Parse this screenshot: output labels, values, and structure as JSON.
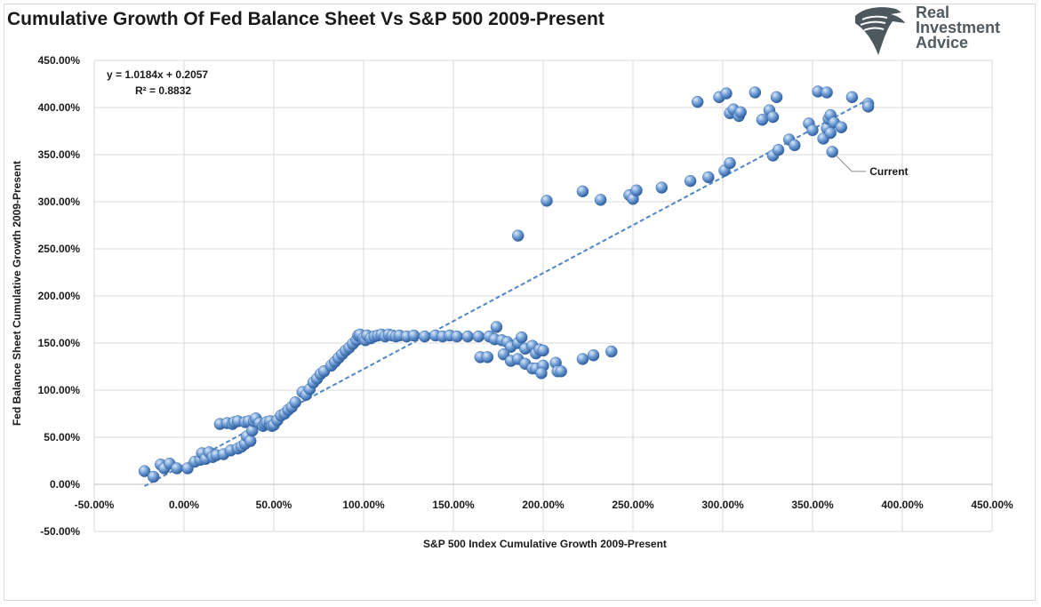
{
  "title": "Cumulative Growth Of Fed Balance Sheet Vs S&P 500 2009-Present",
  "logo": {
    "line1": "Real",
    "line2": "Investment",
    "line3": "Advice"
  },
  "chart_data": {
    "type": "scatter",
    "xlabel": "S&P 500 Index Cumulative Growth 2009-Present",
    "ylabel": "Fed Balance Sheet Cumulative Growth 2009-Present",
    "xlim": [
      -50,
      450
    ],
    "ylim": [
      -50,
      450
    ],
    "x_ticks": [
      "-50.00%",
      "0.00%",
      "50.00%",
      "100.00%",
      "150.00%",
      "200.00%",
      "250.00%",
      "300.00%",
      "350.00%",
      "400.00%",
      "450.00%"
    ],
    "y_ticks": [
      "-50.00%",
      "0.00%",
      "50.00%",
      "100.00%",
      "150.00%",
      "200.00%",
      "250.00%",
      "300.00%",
      "350.00%",
      "400.00%",
      "450.00%"
    ],
    "grid": true,
    "trendline": {
      "equation": "y = 1.0184x + 0.2057",
      "r2": "R² = 0.8832",
      "x_range": [
        -22,
        380
      ]
    },
    "annotation": {
      "text": "Current",
      "x": 361,
      "y": 353
    },
    "colors": {
      "point": "#5b8fcf",
      "trend": "#4f86c6",
      "grid": "#d9d9d9"
    },
    "points": [
      [
        -22,
        14
      ],
      [
        -17,
        8
      ],
      [
        -13,
        21
      ],
      [
        -11,
        17
      ],
      [
        -8,
        22
      ],
      [
        -4,
        17
      ],
      [
        2,
        17
      ],
      [
        6,
        24
      ],
      [
        9,
        26
      ],
      [
        10,
        33
      ],
      [
        12,
        27
      ],
      [
        14,
        34
      ],
      [
        16,
        29
      ],
      [
        18,
        31
      ],
      [
        20,
        64
      ],
      [
        22,
        32
      ],
      [
        24,
        65
      ],
      [
        26,
        36
      ],
      [
        27,
        64
      ],
      [
        28,
        66
      ],
      [
        30,
        38
      ],
      [
        30,
        67
      ],
      [
        32,
        40
      ],
      [
        34,
        66
      ],
      [
        34,
        43
      ],
      [
        35,
        51
      ],
      [
        36,
        67
      ],
      [
        37,
        46
      ],
      [
        38,
        57
      ],
      [
        39,
        67
      ],
      [
        40,
        70
      ],
      [
        42,
        65
      ],
      [
        44,
        62
      ],
      [
        45,
        64
      ],
      [
        46,
        66
      ],
      [
        48,
        64
      ],
      [
        48,
        67
      ],
      [
        49,
        62
      ],
      [
        50,
        63
      ],
      [
        52,
        68
      ],
      [
        54,
        73
      ],
      [
        56,
        75
      ],
      [
        58,
        79
      ],
      [
        60,
        82
      ],
      [
        62,
        87
      ],
      [
        66,
        98
      ],
      [
        68,
        95
      ],
      [
        70,
        101
      ],
      [
        72,
        108
      ],
      [
        74,
        112
      ],
      [
        76,
        117
      ],
      [
        78,
        120
      ],
      [
        82,
        126
      ],
      [
        84,
        130
      ],
      [
        86,
        134
      ],
      [
        88,
        138
      ],
      [
        90,
        142
      ],
      [
        92,
        145
      ],
      [
        94,
        149
      ],
      [
        96,
        153
      ],
      [
        97,
        158
      ],
      [
        98,
        159
      ],
      [
        100,
        155
      ],
      [
        101,
        153
      ],
      [
        102,
        158
      ],
      [
        104,
        155
      ],
      [
        106,
        157
      ],
      [
        108,
        158
      ],
      [
        110,
        159
      ],
      [
        112,
        157
      ],
      [
        114,
        159
      ],
      [
        116,
        158
      ],
      [
        118,
        157
      ],
      [
        120,
        158
      ],
      [
        124,
        157
      ],
      [
        128,
        158
      ],
      [
        134,
        157
      ],
      [
        140,
        158
      ],
      [
        144,
        157
      ],
      [
        148,
        158
      ],
      [
        152,
        157
      ],
      [
        158,
        157
      ],
      [
        164,
        157
      ],
      [
        170,
        157
      ],
      [
        174,
        167
      ],
      [
        173,
        154
      ],
      [
        177,
        153
      ],
      [
        180,
        151
      ],
      [
        182,
        146
      ],
      [
        186,
        150
      ],
      [
        188,
        156
      ],
      [
        190,
        144
      ],
      [
        194,
        147
      ],
      [
        196,
        139
      ],
      [
        198,
        143
      ],
      [
        200,
        142
      ],
      [
        165,
        135
      ],
      [
        169,
        135
      ],
      [
        178,
        138
      ],
      [
        182,
        131
      ],
      [
        186,
        133
      ],
      [
        190,
        128
      ],
      [
        194,
        123
      ],
      [
        196,
        123
      ],
      [
        200,
        126
      ],
      [
        199,
        118
      ],
      [
        207,
        129
      ],
      [
        208,
        120
      ],
      [
        210,
        120
      ],
      [
        222,
        133
      ],
      [
        228,
        137
      ],
      [
        238,
        141
      ],
      [
        186,
        264
      ],
      [
        202,
        301
      ],
      [
        222,
        311
      ],
      [
        232,
        302
      ],
      [
        248,
        307
      ],
      [
        250,
        303
      ],
      [
        252,
        312
      ],
      [
        266,
        315
      ],
      [
        282,
        322
      ],
      [
        292,
        326
      ],
      [
        301,
        333
      ],
      [
        304,
        341
      ],
      [
        286,
        406
      ],
      [
        298,
        411
      ],
      [
        302,
        415
      ],
      [
        304,
        394
      ],
      [
        306,
        398
      ],
      [
        309,
        391
      ],
      [
        310,
        395
      ],
      [
        318,
        416
      ],
      [
        322,
        387
      ],
      [
        326,
        397
      ],
      [
        328,
        390
      ],
      [
        330,
        411
      ],
      [
        328,
        349
      ],
      [
        331,
        355
      ],
      [
        337,
        366
      ],
      [
        340,
        360
      ],
      [
        348,
        383
      ],
      [
        350,
        376
      ],
      [
        353,
        417
      ],
      [
        356,
        367
      ],
      [
        358,
        416
      ],
      [
        358,
        378
      ],
      [
        359,
        388
      ],
      [
        360,
        373
      ],
      [
        360,
        392
      ],
      [
        361,
        353
      ],
      [
        362,
        384
      ],
      [
        366,
        379
      ],
      [
        372,
        411
      ],
      [
        381,
        404
      ],
      [
        381,
        401
      ]
    ]
  }
}
